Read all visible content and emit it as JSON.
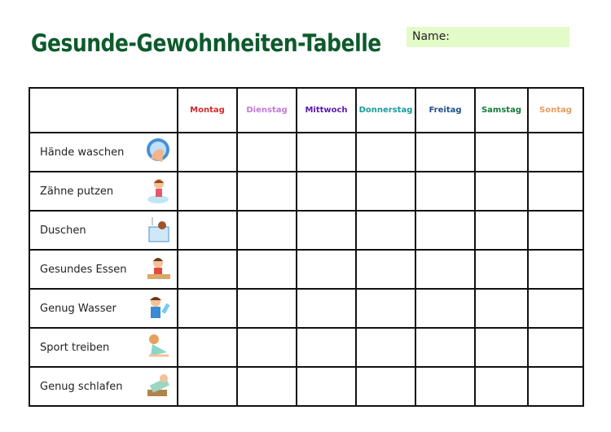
{
  "title": "Gesunde-Gewohnheiten-Tabelle",
  "name_label": "Name:",
  "days": [
    {
      "label": "Montag",
      "color": "#d42a2a"
    },
    {
      "label": "Dienstag",
      "color": "#c27ad6"
    },
    {
      "label": "Mittwoch",
      "color": "#5a16b4"
    },
    {
      "label": "Donnerstag",
      "color": "#1a9a9a"
    },
    {
      "label": "Freitag",
      "color": "#1d4e8c"
    },
    {
      "label": "Samstag",
      "color": "#167a3c"
    },
    {
      "label": "Sontag",
      "color": "#ea9a5a"
    }
  ],
  "habits": [
    {
      "label": "Hände waschen",
      "icon": "hand-washing-icon"
    },
    {
      "label": "Zähne putzen",
      "icon": "tooth-brushing-icon"
    },
    {
      "label": "Duschen",
      "icon": "shower-icon"
    },
    {
      "label": "Gesundes Essen",
      "icon": "healthy-eating-icon"
    },
    {
      "label": "Genug Wasser",
      "icon": "drinking-water-icon"
    },
    {
      "label": "Sport treiben",
      "icon": "exercise-icon"
    },
    {
      "label": "Genug schlafen",
      "icon": "sleeping-icon"
    }
  ]
}
